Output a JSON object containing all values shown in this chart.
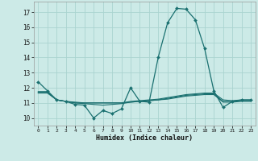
{
  "bg_color": "#cceae7",
  "grid_color": "#aad4d0",
  "line_color": "#1a7070",
  "xlabel": "Humidex (Indice chaleur)",
  "xlim": [
    -0.5,
    23.5
  ],
  "ylim": [
    9.5,
    17.7
  ],
  "yticks": [
    10,
    11,
    12,
    13,
    14,
    15,
    16,
    17
  ],
  "xticks": [
    0,
    1,
    2,
    3,
    4,
    5,
    6,
    7,
    8,
    9,
    10,
    11,
    12,
    13,
    14,
    15,
    16,
    17,
    18,
    19,
    20,
    21,
    22,
    23
  ],
  "line1_x": [
    0,
    1,
    2,
    3,
    4,
    5,
    6,
    7,
    8,
    9,
    10,
    11,
    12,
    13,
    14,
    15,
    16,
    17,
    18,
    19,
    20,
    21,
    22,
    23
  ],
  "line1_y": [
    12.4,
    11.8,
    11.2,
    11.1,
    10.9,
    10.85,
    10.0,
    10.5,
    10.3,
    10.6,
    12.0,
    11.1,
    11.05,
    14.05,
    16.3,
    17.25,
    17.2,
    16.5,
    14.6,
    11.8,
    10.7,
    11.1,
    11.2,
    11.2
  ],
  "line2_x": [
    0,
    1,
    2,
    3,
    4,
    5,
    6,
    7,
    8,
    9,
    10,
    11,
    12,
    13,
    14,
    15,
    16,
    17,
    18,
    19,
    20,
    21,
    22,
    23
  ],
  "line2_y": [
    11.75,
    11.75,
    11.2,
    11.1,
    11.0,
    11.0,
    11.0,
    11.0,
    11.0,
    11.0,
    11.1,
    11.15,
    11.2,
    11.25,
    11.35,
    11.45,
    11.55,
    11.6,
    11.65,
    11.65,
    11.2,
    11.15,
    11.2,
    11.2
  ],
  "line3_x": [
    0,
    1,
    2,
    3,
    4,
    5,
    6,
    7,
    8,
    9,
    10,
    11,
    12,
    13,
    14,
    15,
    16,
    17,
    18,
    19,
    20,
    21,
    22,
    23
  ],
  "line3_y": [
    11.7,
    11.7,
    11.2,
    11.1,
    11.0,
    10.95,
    10.9,
    10.85,
    10.9,
    10.95,
    11.05,
    11.1,
    11.15,
    11.2,
    11.3,
    11.4,
    11.5,
    11.55,
    11.6,
    11.6,
    11.1,
    11.1,
    11.15,
    11.15
  ],
  "line4_x": [
    0,
    1,
    2,
    3,
    4,
    5,
    6,
    7,
    8,
    9,
    10,
    11,
    12,
    13,
    14,
    15,
    16,
    17,
    18,
    19,
    20,
    21,
    22,
    23
  ],
  "line4_y": [
    11.65,
    11.65,
    11.2,
    11.1,
    11.05,
    11.0,
    11.0,
    11.0,
    11.0,
    11.0,
    11.05,
    11.1,
    11.15,
    11.2,
    11.25,
    11.35,
    11.45,
    11.5,
    11.55,
    11.55,
    11.05,
    11.05,
    11.1,
    11.1
  ]
}
